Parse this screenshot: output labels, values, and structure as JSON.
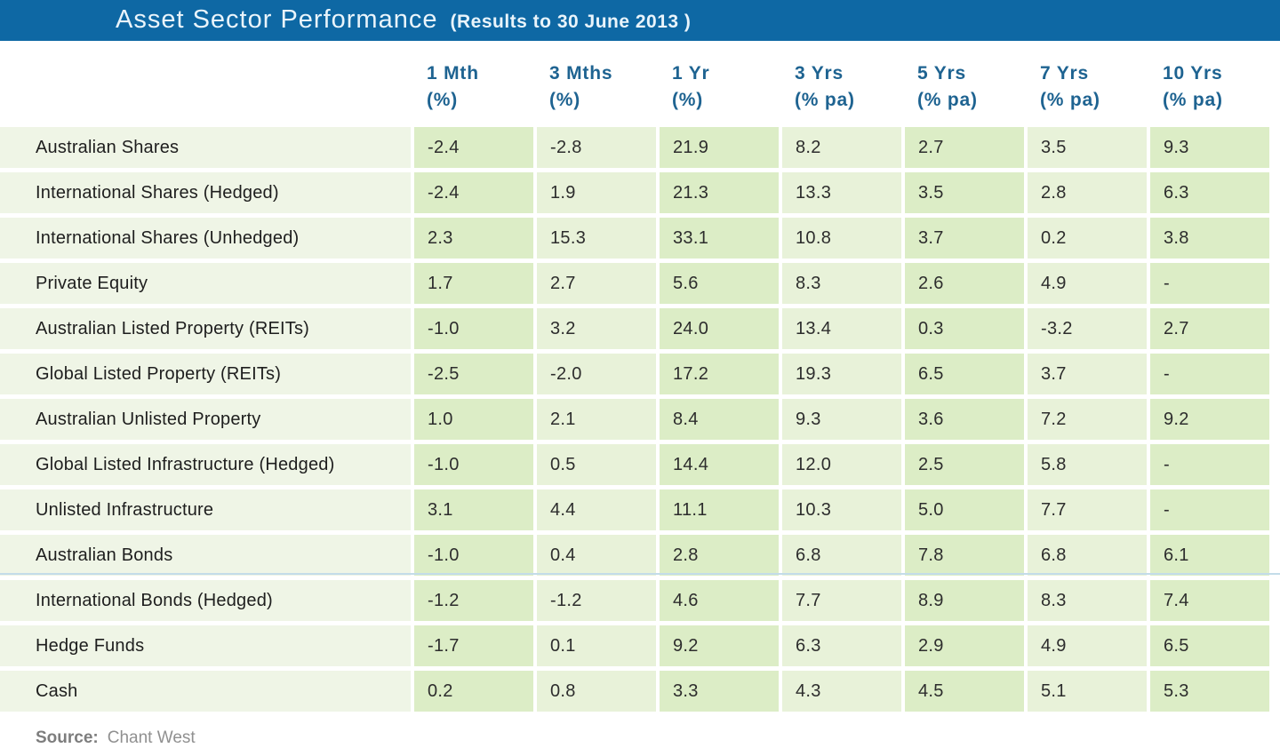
{
  "chart_data": {
    "type": "table",
    "title": "Asset Sector Performance",
    "subtitle": "(Results to 30 June 2013 )",
    "columns": [
      {
        "line1": "1 Mth",
        "line2": "(%)"
      },
      {
        "line1": "3 Mths",
        "line2": "(%)"
      },
      {
        "line1": "1 Yr",
        "line2": "(%)"
      },
      {
        "line1": "3 Yrs",
        "line2": "(% pa)"
      },
      {
        "line1": "5 Yrs",
        "line2": "(% pa)"
      },
      {
        "line1": "7 Yrs",
        "line2": "(% pa)"
      },
      {
        "line1": "10 Yrs",
        "line2": "(% pa)"
      }
    ],
    "rows": [
      {
        "label": "Australian Shares",
        "values": [
          "-2.4",
          "-2.8",
          "21.9",
          "8.2",
          "2.7",
          "3.5",
          "9.3"
        ]
      },
      {
        "label": "International Shares (Hedged)",
        "values": [
          "-2.4",
          "1.9",
          "21.3",
          "13.3",
          "3.5",
          "2.8",
          "6.3"
        ]
      },
      {
        "label": "International Shares (Unhedged)",
        "values": [
          "2.3",
          "15.3",
          "33.1",
          "10.8",
          "3.7",
          "0.2",
          "3.8"
        ]
      },
      {
        "label": "Private Equity",
        "values": [
          "1.7",
          "2.7",
          "5.6",
          "8.3",
          "2.6",
          "4.9",
          "-"
        ]
      },
      {
        "label": "Australian Listed Property (REITs)",
        "values": [
          "-1.0",
          "3.2",
          "24.0",
          "13.4",
          "0.3",
          "-3.2",
          "2.7"
        ]
      },
      {
        "label": "Global Listed Property (REITs)",
        "values": [
          "-2.5",
          "-2.0",
          "17.2",
          "19.3",
          "6.5",
          "3.7",
          "-"
        ]
      },
      {
        "label": "Australian Unlisted Property",
        "values": [
          "1.0",
          "2.1",
          "8.4",
          "9.3",
          "3.6",
          "7.2",
          "9.2"
        ]
      },
      {
        "label": "Global Listed Infrastructure (Hedged)",
        "values": [
          "-1.0",
          "0.5",
          "14.4",
          "12.0",
          "2.5",
          "5.8",
          "-"
        ]
      },
      {
        "label": "Unlisted Infrastructure",
        "values": [
          "3.1",
          "4.4",
          "11.1",
          "10.3",
          "5.0",
          "7.7",
          "-"
        ]
      },
      {
        "label": "Australian Bonds",
        "values": [
          "-1.0",
          "0.4",
          "2.8",
          "6.8",
          "7.8",
          "6.8",
          "6.1"
        ],
        "divider_below": true
      },
      {
        "label": "International Bonds (Hedged)",
        "values": [
          "-1.2",
          "-1.2",
          "4.6",
          "7.7",
          "8.9",
          "8.3",
          "7.4"
        ]
      },
      {
        "label": "Hedge Funds",
        "values": [
          "-1.7",
          "0.1",
          "9.2",
          "6.3",
          "2.9",
          "4.9",
          "6.5"
        ]
      },
      {
        "label": "Cash",
        "values": [
          "0.2",
          "0.8",
          "3.3",
          "4.3",
          "4.5",
          "5.1",
          "5.3"
        ]
      }
    ],
    "source": "Chant West",
    "layout_hints": {
      "grid": "off",
      "legend": "none",
      "column_shading": "alternating green columns"
    }
  },
  "footer": {
    "source_label": "Source:",
    "source_value": "Chant West"
  },
  "colors": {
    "titlebar_blue": "#0e68a4",
    "title_text": "#e9f4fb",
    "header_text_blue": "#1e6391",
    "column_dark_green": "#dcedc6",
    "column_light_green": "#e8f2d9",
    "row_label_bg": "#eff5e6",
    "divider_blue": "#c3dce9",
    "value_text": "#2d2d2d",
    "source_text_gray": "#7d7d7d"
  }
}
